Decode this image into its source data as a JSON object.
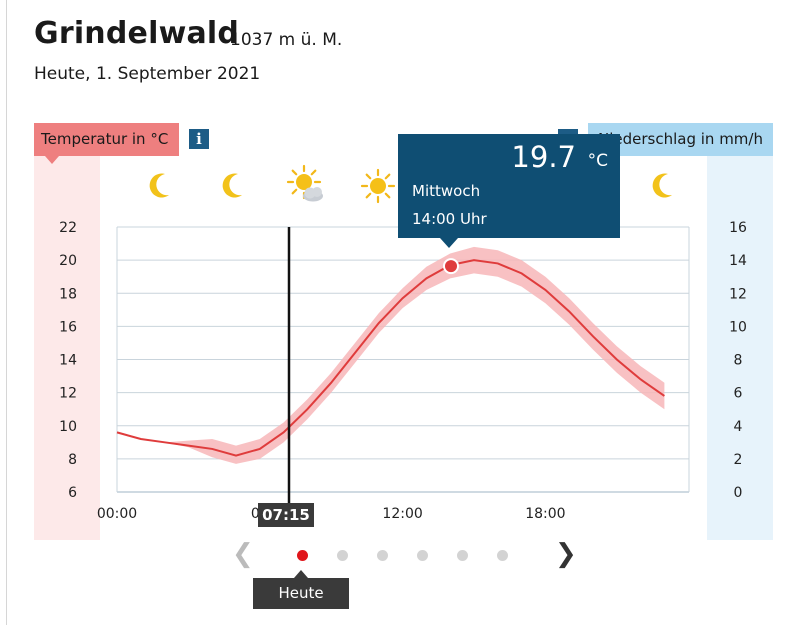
{
  "header": {
    "title": "Grindelwald",
    "elevation": "1037 m ü. M.",
    "date": "Heute, 1. September 2021"
  },
  "temp_axis_label": "Temperatur in °C",
  "info_icon_label": "i",
  "precip_axis_label": "Niederschlag in mm/h",
  "tooltip": {
    "value": "19.7",
    "unit": "°C",
    "day": "Mittwoch",
    "time": "14:00 Uhr"
  },
  "now_marker": {
    "label": "07:15"
  },
  "pager": {
    "active_label": "Heute",
    "dot_count": 6
  },
  "colors": {
    "temp_line": "#df3c3c",
    "temp_band": "#f7b6b8",
    "tooltip_bg": "#0f4e73",
    "active_dot": "#e0161b"
  },
  "chart_data": {
    "type": "line",
    "x_ticks": [
      "00:00",
      "06",
      "12:00",
      "18:00"
    ],
    "y_left": {
      "ticks": [
        6,
        8,
        10,
        12,
        14,
        16,
        18,
        20,
        22
      ],
      "range": [
        6,
        22
      ]
    },
    "y_right": {
      "ticks": [
        0,
        2,
        4,
        6,
        8,
        10,
        12,
        14,
        16
      ],
      "range": [
        0,
        16
      ]
    },
    "weather_icons": [
      "moon-icon",
      "moon-icon",
      "sun-cloud-icon",
      "sun-icon",
      "sun-icon",
      "sun-icon",
      "sun-icon",
      "moon-icon"
    ],
    "series": [
      {
        "x": [
          0,
          1,
          2,
          3,
          4,
          5,
          6,
          7,
          8,
          9,
          10,
          11,
          12,
          13,
          14,
          15,
          16,
          17,
          18,
          19,
          20,
          21,
          22,
          23
        ],
        "values": [
          9.6,
          9.2,
          9.0,
          8.8,
          8.6,
          8.2,
          8.6,
          9.6,
          11.0,
          12.6,
          14.4,
          16.2,
          17.7,
          18.9,
          19.7,
          20.0,
          19.8,
          19.2,
          18.2,
          16.9,
          15.4,
          14.0,
          12.8,
          11.8
        ],
        "low": [
          9.6,
          9.2,
          9.0,
          8.7,
          8.1,
          7.7,
          8.0,
          9.0,
          10.4,
          12.0,
          13.8,
          15.6,
          17.1,
          18.2,
          18.9,
          19.2,
          19.0,
          18.4,
          17.4,
          16.1,
          14.6,
          13.2,
          12.0,
          11.0
        ],
        "high": [
          9.6,
          9.2,
          9.0,
          9.1,
          9.2,
          8.8,
          9.2,
          10.2,
          11.6,
          13.2,
          15.0,
          16.8,
          18.3,
          19.6,
          20.4,
          20.8,
          20.6,
          20.0,
          19.0,
          17.7,
          16.2,
          14.8,
          13.6,
          12.6
        ]
      }
    ],
    "now_x": 7.25,
    "selected_x": 14
  }
}
